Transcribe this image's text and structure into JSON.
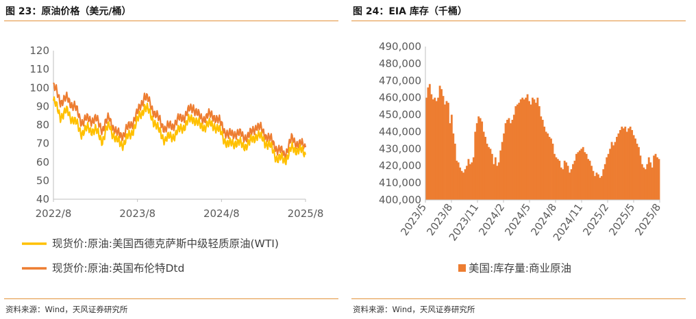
{
  "left_panel": {
    "figure_title": "图 23：原油价格（美元/桶）",
    "source": "资料来源：Wind，天风证券研究所"
  },
  "right_panel": {
    "figure_title": "图 24：EIA 库存（千桶）",
    "source": "资料来源：Wind，天风证券研究所"
  },
  "colors": {
    "accent_rule": "#e39138",
    "wti": "#ffc000",
    "brent": "#ed7d31",
    "bars": "#ed7d31",
    "axis": "#bfbfbf",
    "tick_text": "#595959"
  },
  "chart_data": [
    {
      "type": "line",
      "title": "",
      "xlabel": "",
      "ylabel": "",
      "ylim": [
        40,
        120
      ],
      "y_ticks": [
        "40",
        "50",
        "60",
        "70",
        "80",
        "90",
        "100",
        "110",
        "120"
      ],
      "x_ticks": [
        "2022/8",
        "2023/8",
        "2024/8",
        "2025/8"
      ],
      "legend_position": "bottom",
      "grid": false,
      "series": [
        {
          "name": "现货价:原油:美国西德克萨斯中级轻质原油(WTI)",
          "x": [
            "2022/8",
            "2022/9",
            "2022/10",
            "2022/11",
            "2022/12",
            "2023/1",
            "2023/2",
            "2023/3",
            "2023/4",
            "2023/5",
            "2023/6",
            "2023/7",
            "2023/8",
            "2023/9",
            "2023/10",
            "2023/11",
            "2023/12",
            "2024/1",
            "2024/2",
            "2024/3",
            "2024/4",
            "2024/5",
            "2024/6",
            "2024/7",
            "2024/8",
            "2024/9",
            "2024/10",
            "2024/11",
            "2024/12",
            "2025/1",
            "2025/2",
            "2025/3",
            "2025/4",
            "2025/5",
            "2025/6",
            "2025/7",
            "2025/8"
          ],
          "values": [
            93,
            85,
            87,
            82,
            76,
            78,
            77,
            72,
            80,
            71,
            70,
            75,
            82,
            90,
            85,
            77,
            72,
            74,
            77,
            81,
            84,
            79,
            80,
            80,
            75,
            69,
            71,
            69,
            70,
            75,
            72,
            68,
            62,
            61,
            67,
            67,
            64
          ]
        },
        {
          "name": "现货价:原油:英国布伦特Dtd",
          "x": [
            "2022/8",
            "2022/9",
            "2022/10",
            "2022/11",
            "2022/12",
            "2023/1",
            "2023/2",
            "2023/3",
            "2023/4",
            "2023/5",
            "2023/6",
            "2023/7",
            "2023/8",
            "2023/9",
            "2023/10",
            "2023/11",
            "2023/12",
            "2024/1",
            "2024/2",
            "2024/3",
            "2024/4",
            "2024/5",
            "2024/6",
            "2024/7",
            "2024/8",
            "2024/9",
            "2024/10",
            "2024/11",
            "2024/12",
            "2025/1",
            "2025/2",
            "2025/3",
            "2025/4",
            "2025/5",
            "2025/6",
            "2025/7",
            "2025/8"
          ],
          "values": [
            101,
            93,
            94,
            90,
            82,
            83,
            83,
            78,
            84,
            75,
            75,
            80,
            86,
            96,
            90,
            83,
            78,
            80,
            83,
            86,
            90,
            83,
            85,
            85,
            80,
            74,
            76,
            74,
            74,
            80,
            76,
            72,
            67,
            64,
            72,
            70,
            68
          ]
        }
      ]
    },
    {
      "type": "bar",
      "title": "",
      "xlabel": "",
      "ylabel": "",
      "ylim": [
        400000,
        490000
      ],
      "y_ticks": [
        "400,000",
        "410,000",
        "420,000",
        "430,000",
        "440,000",
        "450,000",
        "460,000",
        "470,000",
        "480,000",
        "490,000"
      ],
      "x_ticks": [
        "2023/5",
        "2023/8",
        "2023/11",
        "2024/2",
        "2024/5",
        "2024/8",
        "2024/11",
        "2025/2",
        "2025/5",
        "2025/8"
      ],
      "legend_position": "bottom",
      "grid": false,
      "series": [
        {
          "name": "美国:库存量:商业原油",
          "values": [
            460000,
            466000,
            468000,
            462000,
            459000,
            460000,
            458000,
            460000,
            467000,
            465000,
            461000,
            456000,
            458000,
            457000,
            445000,
            450000,
            439000,
            433000,
            423000,
            422000,
            419000,
            417000,
            416000,
            418000,
            420000,
            424000,
            421000,
            422000,
            425000,
            440000,
            445000,
            449000,
            448000,
            446000,
            440000,
            437000,
            433000,
            431000,
            430000,
            427000,
            421000,
            425000,
            420000,
            422000,
            429000,
            434000,
            439000,
            445000,
            447000,
            448000,
            445000,
            447000,
            450000,
            455000,
            456000,
            457000,
            459000,
            460000,
            459000,
            460000,
            462000,
            458000,
            456000,
            460000,
            459000,
            457000,
            460000,
            455000,
            449000,
            447000,
            443000,
            440000,
            439000,
            437000,
            436000,
            433000,
            427000,
            425000,
            424000,
            423000,
            419000,
            418000,
            423000,
            422000,
            420000,
            416000,
            418000,
            421000,
            423000,
            427000,
            428000,
            429000,
            430000,
            431000,
            428000,
            427000,
            424000,
            423000,
            420000,
            417000,
            414000,
            416000,
            415000,
            413000,
            414000,
            418000,
            421000,
            425000,
            427000,
            430000,
            434000,
            432000,
            434000,
            437000,
            439000,
            441000,
            443000,
            442000,
            443000,
            440000,
            442000,
            443000,
            441000,
            438000,
            436000,
            433000,
            431000,
            426000,
            421000,
            419000,
            418000,
            421000,
            425000,
            422000,
            419000,
            426000,
            427000,
            425000,
            424000
          ]
        }
      ]
    }
  ]
}
